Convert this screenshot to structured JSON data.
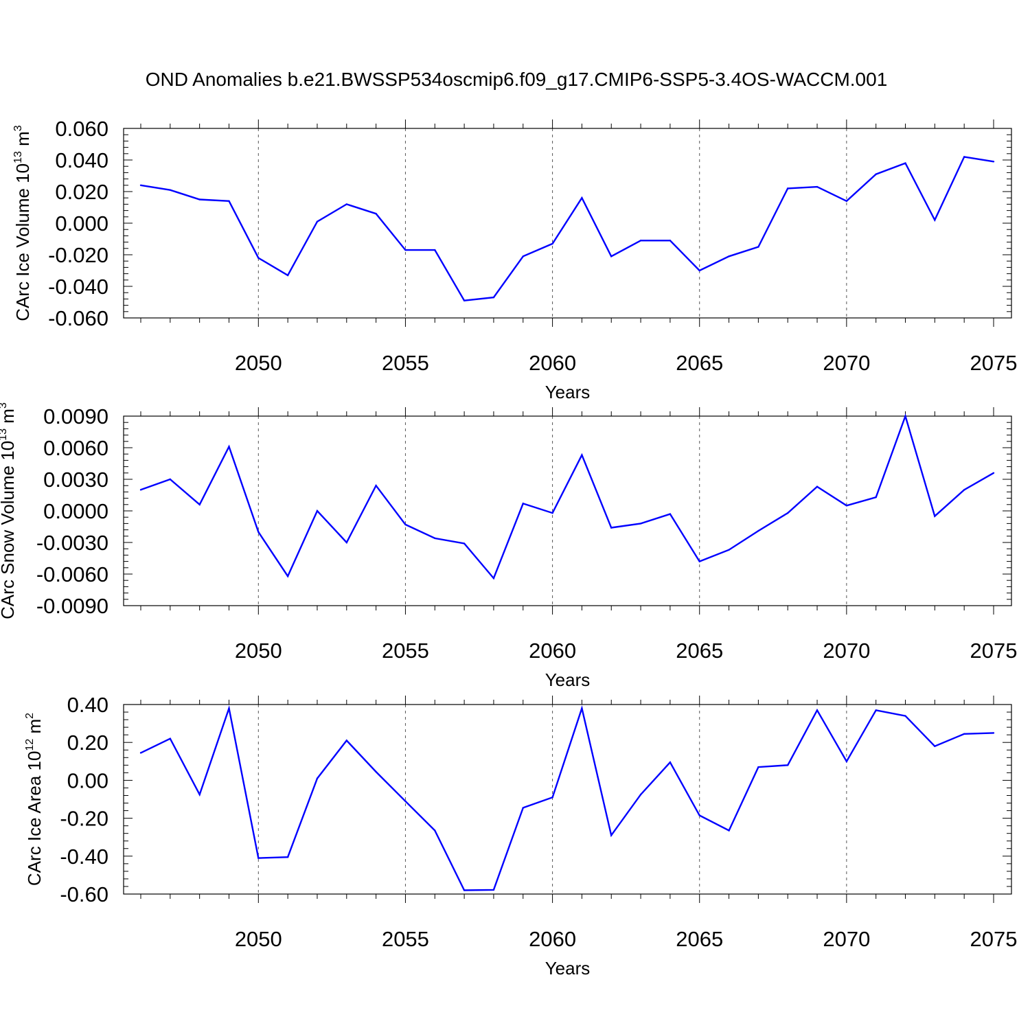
{
  "title": "OND Anomalies b.e21.BWSSP534oscmip6.f09_g17.CMIP6-SSP5-3.4OS-WACCM.001",
  "colors": {
    "line": "#0000ff",
    "axis": "#000000",
    "grid": "#555555",
    "background": "#ffffff"
  },
  "chart_data": [
    {
      "type": "line",
      "ylabel": "CArc Ice Volume 10",
      "ylabel_sup": "13",
      "ylabel_unit": "m",
      "ylabel_unit_sup": "3",
      "xlabel": "Years",
      "xlim": [
        2046,
        2075
      ],
      "ylim": [
        -0.06,
        0.06
      ],
      "yticks": [
        -0.06,
        -0.04,
        -0.02,
        0.0,
        0.02,
        0.04,
        0.06
      ],
      "ytick_labels": [
        "-0.060",
        "-0.040",
        "-0.020",
        "0.000",
        "0.020",
        "0.040",
        "0.060"
      ],
      "xticks": [
        2050,
        2055,
        2060,
        2065,
        2070,
        2075
      ],
      "xtick_labels": [
        "2050",
        "2055",
        "2060",
        "2065",
        "2070",
        "2075"
      ],
      "grid": "dashed vertical at major x ticks",
      "x": [
        2046,
        2047,
        2048,
        2049,
        2050,
        2051,
        2052,
        2053,
        2054,
        2055,
        2056,
        2057,
        2058,
        2059,
        2060,
        2061,
        2062,
        2063,
        2064,
        2065,
        2066,
        2067,
        2068,
        2069,
        2070,
        2071,
        2072,
        2073,
        2074,
        2075
      ],
      "y": [
        0.024,
        0.021,
        0.015,
        0.014,
        -0.022,
        -0.033,
        0.001,
        0.012,
        0.006,
        -0.017,
        -0.017,
        -0.049,
        -0.047,
        -0.021,
        -0.013,
        0.016,
        -0.021,
        -0.011,
        -0.011,
        -0.03,
        -0.021,
        -0.015,
        0.022,
        0.023,
        0.014,
        0.031,
        0.038,
        0.002,
        0.042,
        0.039
      ]
    },
    {
      "type": "line",
      "ylabel": "CArc Snow Volume 10",
      "ylabel_sup": "13",
      "ylabel_unit": "m",
      "ylabel_unit_sup": "3",
      "xlabel": "Years",
      "xlim": [
        2046,
        2075
      ],
      "ylim": [
        -0.009,
        0.009
      ],
      "yticks": [
        -0.009,
        -0.006,
        -0.003,
        0.0,
        0.003,
        0.006,
        0.009
      ],
      "ytick_labels": [
        "-0.0090",
        "-0.0060",
        "-0.0030",
        "0.0000",
        "0.0030",
        "0.0060",
        "0.0090"
      ],
      "xticks": [
        2050,
        2055,
        2060,
        2065,
        2070,
        2075
      ],
      "xtick_labels": [
        "2050",
        "2055",
        "2060",
        "2065",
        "2070",
        "2075"
      ],
      "grid": "dashed vertical at major x ticks",
      "x": [
        2046,
        2047,
        2048,
        2049,
        2050,
        2051,
        2052,
        2053,
        2054,
        2055,
        2056,
        2057,
        2058,
        2059,
        2060,
        2061,
        2062,
        2063,
        2064,
        2065,
        2066,
        2067,
        2068,
        2069,
        2070,
        2071,
        2072,
        2073,
        2074,
        2075
      ],
      "y": [
        0.002,
        0.003,
        0.0006,
        0.0061,
        -0.002,
        -0.0062,
        0.0,
        -0.003,
        0.0024,
        -0.0013,
        -0.0026,
        -0.0031,
        -0.0064,
        0.0007,
        -0.0002,
        0.0053,
        -0.0016,
        -0.0012,
        -0.0003,
        -0.0048,
        -0.0037,
        -0.0019,
        -0.0002,
        0.0023,
        0.0005,
        0.0013,
        0.009,
        -0.0005,
        0.002,
        0.0036
      ]
    },
    {
      "type": "line",
      "ylabel": "CArc Ice Area 10",
      "ylabel_sup": "12",
      "ylabel_unit": "m",
      "ylabel_unit_sup": "2",
      "xlabel": "Years",
      "xlim": [
        2046,
        2075
      ],
      "ylim": [
        -0.6,
        0.4
      ],
      "yticks": [
        -0.6,
        -0.4,
        -0.2,
        0.0,
        0.2,
        0.4
      ],
      "ytick_labels": [
        "-0.60",
        "-0.40",
        "-0.20",
        "0.00",
        "0.20",
        "0.40"
      ],
      "xticks": [
        2050,
        2055,
        2060,
        2065,
        2070,
        2075
      ],
      "xtick_labels": [
        "2050",
        "2055",
        "2060",
        "2065",
        "2070",
        "2075"
      ],
      "grid": "dashed vertical at major x ticks",
      "x": [
        2046,
        2047,
        2048,
        2049,
        2050,
        2051,
        2052,
        2053,
        2054,
        2055,
        2056,
        2057,
        2058,
        2059,
        2060,
        2061,
        2062,
        2063,
        2064,
        2065,
        2066,
        2067,
        2068,
        2069,
        2070,
        2071,
        2072,
        2073,
        2074,
        2075
      ],
      "y": [
        0.145,
        0.22,
        -0.075,
        0.38,
        -0.41,
        -0.405,
        0.01,
        0.21,
        0.045,
        -0.11,
        -0.265,
        -0.58,
        -0.578,
        -0.145,
        -0.09,
        0.38,
        -0.29,
        -0.075,
        0.095,
        -0.185,
        -0.265,
        0.07,
        0.08,
        0.37,
        0.1,
        0.37,
        0.34,
        0.18,
        0.245,
        0.25
      ]
    }
  ]
}
